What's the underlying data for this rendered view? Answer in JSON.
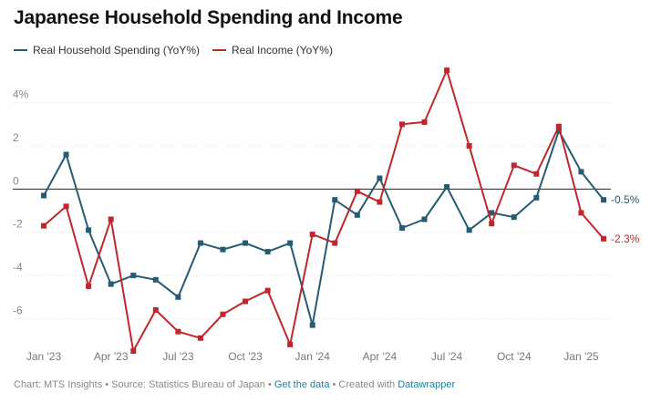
{
  "title": "Japanese Household Spending and Income",
  "legend": [
    {
      "name": "Real Household Spending (YoY%)",
      "color": "#255b73"
    },
    {
      "name": "Real Income (YoY%)",
      "color": "#c0272d"
    }
  ],
  "footer": {
    "prefix": "Chart: MTS Insights • Source: Statistics Bureau of Japan • ",
    "data_link": "Get the data",
    "middle": " • Created with ",
    "tool_link": "Datawrapper"
  },
  "chart_data": {
    "type": "line",
    "title": "Japanese Household Spending and Income",
    "xlabel": "",
    "ylabel": "",
    "x": [
      "Jan '23",
      "Feb '23",
      "Mar '23",
      "Apr '23",
      "May '23",
      "Jun '23",
      "Jul '23",
      "Aug '23",
      "Sep '23",
      "Oct '23",
      "Nov '23",
      "Dec '23",
      "Jan '24",
      "Feb '24",
      "Mar '24",
      "Apr '24",
      "May '24",
      "Jun '24",
      "Jul '24",
      "Aug '24",
      "Sep '24",
      "Oct '24",
      "Nov '24",
      "Dec '24",
      "Jan '25",
      "Feb '25"
    ],
    "x_tick_labels": [
      "Jan '23",
      "Apr '23",
      "Jul '23",
      "Oct '23",
      "Jan '24",
      "Apr '24",
      "Jul '24",
      "Oct '24",
      "Jan '25"
    ],
    "ylim": [
      -7.5,
      5.8
    ],
    "y_ticks": [
      4,
      2,
      0,
      -2,
      -4,
      -6
    ],
    "y_tick_labels": [
      "4%",
      "2",
      "0",
      "-2",
      "-4",
      "-6"
    ],
    "series": [
      {
        "name": "Real Household Spending (YoY%)",
        "color": "#255b73",
        "values": [
          -0.3,
          1.6,
          -1.9,
          -4.4,
          -4.0,
          -4.2,
          -5.0,
          -2.5,
          -2.8,
          -2.5,
          -2.9,
          -2.5,
          -6.3,
          -0.5,
          -1.2,
          0.5,
          -1.8,
          -1.4,
          0.1,
          -1.9,
          -1.1,
          -1.3,
          -0.4,
          2.7,
          0.8,
          -0.5
        ],
        "end_label": "-0.5%"
      },
      {
        "name": "Real Income (YoY%)",
        "color": "#c0272d",
        "values": [
          -1.7,
          -0.8,
          -4.5,
          -1.4,
          -7.5,
          -5.6,
          -6.6,
          -6.9,
          -5.8,
          -5.2,
          -4.7,
          -7.2,
          -2.1,
          -2.5,
          -0.1,
          -0.6,
          3.0,
          3.1,
          5.5,
          2.0,
          -1.6,
          1.1,
          0.7,
          2.9,
          -1.1,
          -2.3
        ],
        "end_label": "-2.3%"
      }
    ]
  }
}
